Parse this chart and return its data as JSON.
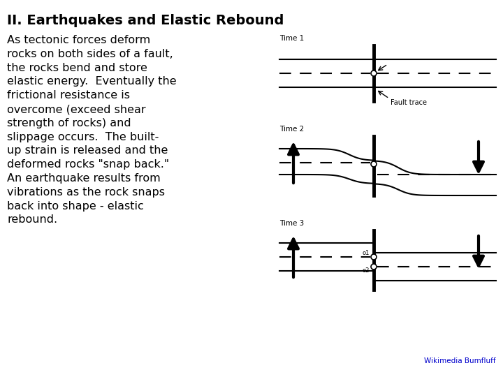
{
  "title": "II. Earthquakes and Elastic Rebound",
  "body_text": "As tectonic forces deform\nrocks on both sides of a fault,\nthe rocks bend and store\nelastic energy.  Eventually the\nfrictional resistance is\novercome (exceed shear\nstrength of rocks) and\nslippage occurs.  The built-\nup strain is released and the\ndeformed rocks \"snap back.\"\nAn earthquake results from\nvibrations as the rock snaps\nback into shape - elastic\nrebound.",
  "bg_color": "#ffffff",
  "text_color": "#000000",
  "title_fontsize": 14,
  "body_fontsize": 11.5,
  "diagram_label1": "Time 1",
  "diagram_label2": "Time 2",
  "diagram_label3": "Time 3",
  "fault_trace_label": "Fault trace",
  "wikimedia_label": "Wikimedia Bumfluff",
  "wikimedia_color": "#0000cc"
}
